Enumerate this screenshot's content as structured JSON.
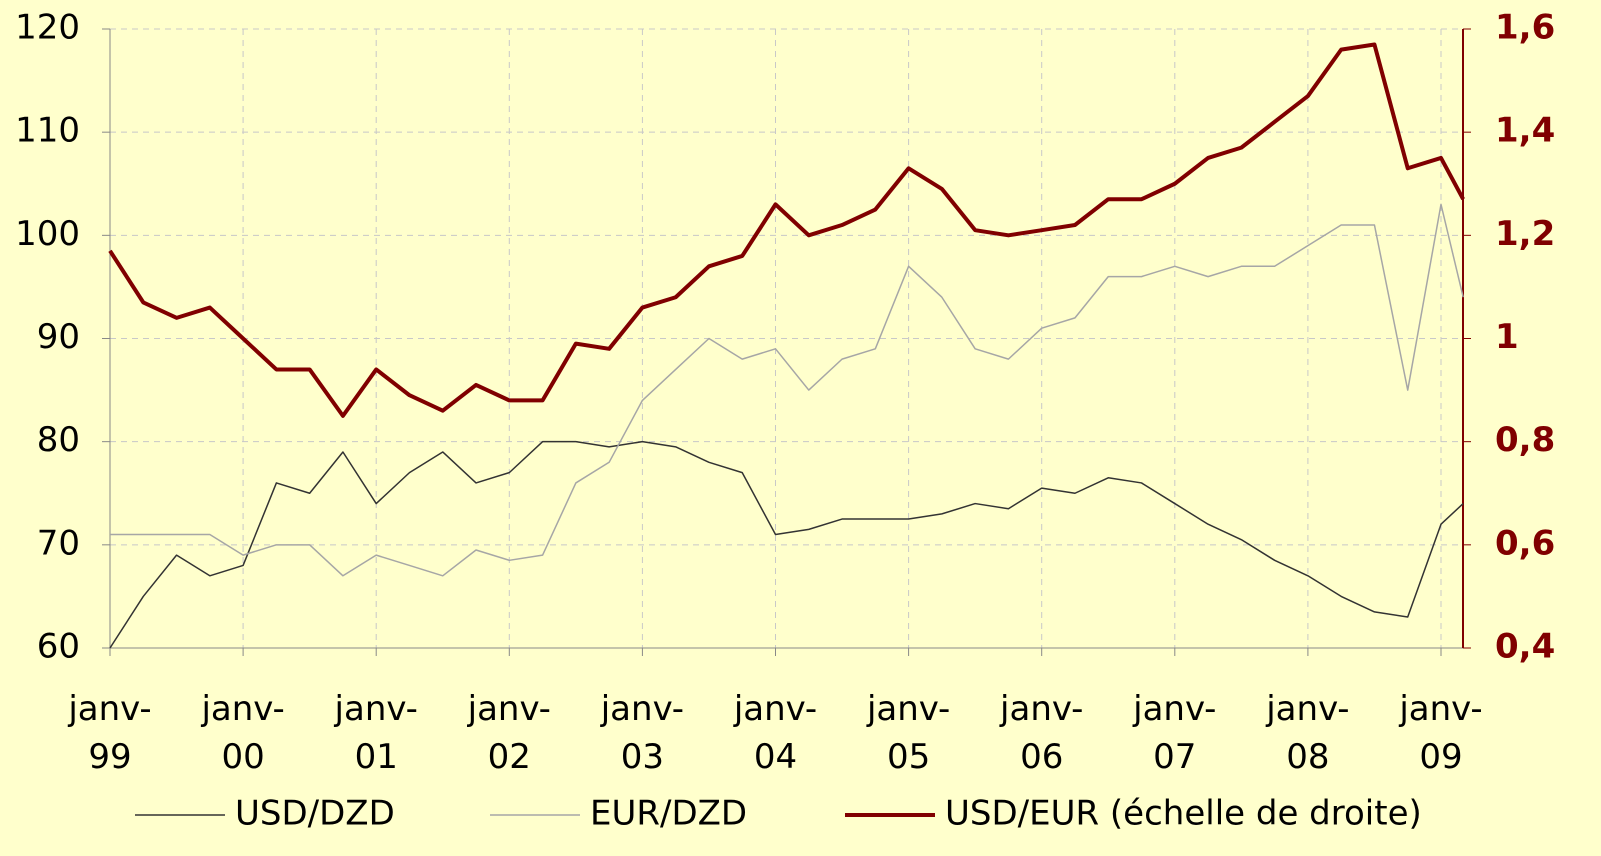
{
  "chart_data": {
    "type": "line",
    "x": [
      "1999-01",
      "1999-04",
      "1999-07",
      "1999-10",
      "2000-01",
      "2000-04",
      "2000-07",
      "2000-10",
      "2001-01",
      "2001-04",
      "2001-07",
      "2001-10",
      "2002-01",
      "2002-04",
      "2002-07",
      "2002-10",
      "2003-01",
      "2003-04",
      "2003-07",
      "2003-10",
      "2004-01",
      "2004-04",
      "2004-07",
      "2004-10",
      "2005-01",
      "2005-04",
      "2005-07",
      "2005-10",
      "2006-01",
      "2006-04",
      "2006-07",
      "2006-10",
      "2007-01",
      "2007-04",
      "2007-07",
      "2007-10",
      "2008-01",
      "2008-04",
      "2008-07",
      "2008-10",
      "2009-01",
      "2009-03"
    ],
    "series": [
      {
        "name": "USD/DZD",
        "color": "#333333",
        "width": 1.5,
        "axis": "y",
        "values": [
          60,
          65,
          69,
          67,
          68,
          76,
          75,
          79,
          74,
          77,
          79,
          76,
          77,
          80,
          80,
          79.5,
          80,
          79.5,
          78,
          77,
          71,
          71.5,
          72.5,
          72.5,
          72.5,
          73,
          74,
          73.5,
          75.5,
          75,
          76.5,
          76,
          74,
          72,
          70.5,
          68.5,
          67,
          65,
          63.5,
          63,
          72,
          74
        ]
      },
      {
        "name": "EUR/DZD",
        "color": "#a6a6a6",
        "width": 1.5,
        "axis": "y",
        "values": [
          71,
          71,
          71,
          71,
          69,
          70,
          70,
          67,
          69,
          68,
          67,
          69.5,
          68.5,
          69,
          76,
          78,
          84,
          87,
          90,
          88,
          89,
          85,
          88,
          89,
          97,
          94,
          89,
          88,
          91,
          92,
          96,
          96,
          97,
          96,
          97,
          97,
          99,
          101,
          101,
          85,
          103,
          94
        ]
      },
      {
        "name": "USD/EUR (échelle de droite)",
        "color": "#800000",
        "width": 4,
        "axis": "y2",
        "values": [
          1.17,
          1.07,
          1.04,
          1.06,
          1.0,
          0.94,
          0.94,
          0.85,
          0.94,
          0.89,
          0.86,
          0.91,
          0.88,
          0.88,
          0.99,
          0.98,
          1.06,
          1.08,
          1.14,
          1.16,
          1.26,
          1.2,
          1.22,
          1.25,
          1.33,
          1.29,
          1.21,
          1.2,
          1.21,
          1.22,
          1.27,
          1.27,
          1.3,
          1.35,
          1.37,
          1.42,
          1.47,
          1.56,
          1.57,
          1.33,
          1.35,
          1.27
        ]
      }
    ],
    "xlim": [
      "1999-01",
      "2009-03"
    ],
    "xticks": [
      {
        "value": "1999-01",
        "label": "janv-99"
      },
      {
        "value": "2000-01",
        "label": "janv-00"
      },
      {
        "value": "2001-01",
        "label": "janv-01"
      },
      {
        "value": "2002-01",
        "label": "janv-02"
      },
      {
        "value": "2003-01",
        "label": "janv-03"
      },
      {
        "value": "2004-01",
        "label": "janv-04"
      },
      {
        "value": "2005-01",
        "label": "janv-05"
      },
      {
        "value": "2006-01",
        "label": "janv-06"
      },
      {
        "value": "2007-01",
        "label": "janv-07"
      },
      {
        "value": "2008-01",
        "label": "janv-08"
      },
      {
        "value": "2009-01",
        "label": "janv-09"
      }
    ],
    "ylim": [
      60,
      120
    ],
    "yticks": [
      60,
      70,
      80,
      90,
      100,
      110,
      120
    ],
    "y2lim": [
      0.4,
      1.6
    ],
    "y2ticks": [
      {
        "value": 0.4,
        "label": "0,4"
      },
      {
        "value": 0.6,
        "label": "0,6"
      },
      {
        "value": 0.8,
        "label": "0,8"
      },
      1,
      {
        "value": 1.2,
        "label": "1,2"
      },
      {
        "value": 1.4,
        "label": "1,4"
      },
      {
        "value": 1.6,
        "label": "1,6"
      }
    ],
    "y2color": "#800000",
    "grid": true,
    "legend": "bottom"
  }
}
